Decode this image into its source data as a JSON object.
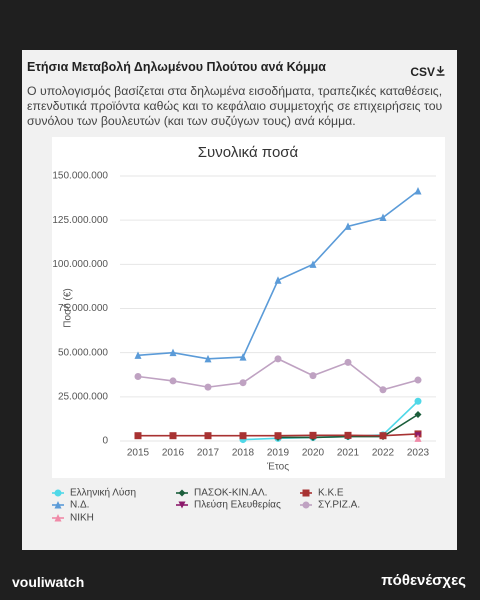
{
  "title": "Ετήσια Μεταβολή Δηλωμένου Πλούτου ανά Κόμμα",
  "download": "CSV",
  "description": "Ο υπολογισμός βασίζεται στα δηλωμένα εισοδήματα, τραπεζικές καταθέσεις, επενδυτικά προϊόντα καθώς και το κεφάλαιο συμμετοχής σε επιχειρήσεις του συνόλου των βουλευτών (και των συζύγων τους) ανά κόμμα.",
  "footer": {
    "left": "vouliwatch",
    "right": "πόθενέσχες"
  },
  "chart_data": {
    "type": "line",
    "title": "Συνολικά ποσά",
    "xlabel": "Έτος",
    "ylabel": "Ποσό (€)",
    "categories": [
      "2015",
      "2016",
      "2017",
      "2018",
      "2019",
      "2020",
      "2021",
      "2022",
      "2023"
    ],
    "ylim": [
      0,
      150000000
    ],
    "yticks": [
      0,
      {
        "value": 25000000,
        "label": "25.000.000"
      },
      {
        "value": 50000000,
        "label": "50.000.000"
      },
      {
        "value": 75000000,
        "label": "75.000.000"
      },
      {
        "value": 100000000,
        "label": "100.000.000"
      },
      {
        "value": 125000000,
        "label": "125.000.000"
      },
      {
        "value": 150000000,
        "label": "150.000.000"
      }
    ],
    "grid": true,
    "series": [
      {
        "name": "Ελληνική Λύση",
        "color": "#4fd8e8",
        "marker": "circle",
        "values": [
          null,
          null,
          null,
          800000,
          1500000,
          2000000,
          2500000,
          3500000,
          22500000
        ]
      },
      {
        "name": "ΠΑΣΟΚ-ΚΙΝ.ΑΛ.",
        "color": "#1b5e3b",
        "marker": "diamond",
        "values": [
          null,
          null,
          null,
          null,
          2000000,
          2000000,
          2500000,
          2500000,
          15000000
        ]
      },
      {
        "name": "Κ.Κ.Ε",
        "color": "#a83232",
        "marker": "square",
        "values": [
          3000000,
          3000000,
          3000000,
          3000000,
          3000000,
          3200000,
          3200000,
          3000000,
          4000000
        ]
      },
      {
        "name": "Ν.Δ.",
        "color": "#5b9bd8",
        "marker": "triangle",
        "values": [
          48500000,
          50000000,
          46500000,
          47500000,
          91000000,
          100000000,
          121500000,
          126500000,
          141500000
        ]
      },
      {
        "name": "Πλεύση Ελευθερίας",
        "color": "#8b1a6b",
        "marker": "triangle-down",
        "values": [
          null,
          null,
          null,
          null,
          null,
          null,
          null,
          null,
          3000000
        ]
      },
      {
        "name": "ΣΥ.ΡΙΖ.Α.",
        "color": "#bfa2c2",
        "marker": "circle",
        "values": [
          36500000,
          34000000,
          30500000,
          33000000,
          46500000,
          37000000,
          44500000,
          29000000,
          34500000
        ]
      },
      {
        "name": "ΝΙΚΗ",
        "color": "#f08aa8",
        "marker": "triangle",
        "values": [
          null,
          null,
          null,
          null,
          null,
          null,
          null,
          null,
          1500000
        ]
      }
    ]
  }
}
